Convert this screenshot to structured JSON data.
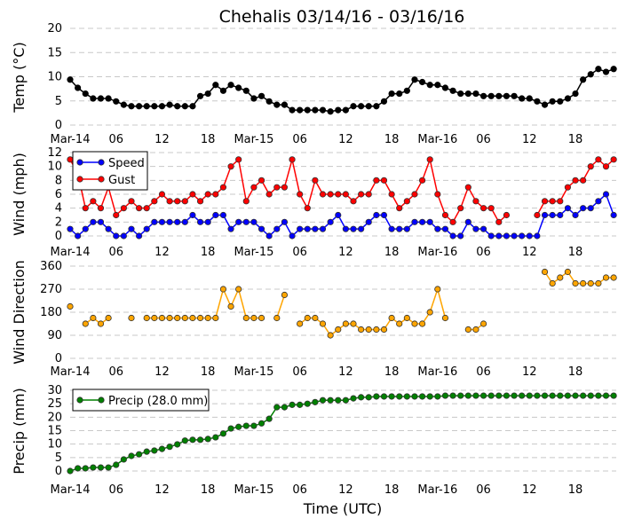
{
  "chart_data": {
    "type": "line",
    "title": "Chehalis 03/14/16 - 03/16/16",
    "xlabel": "Time (UTC)",
    "xlim": [
      "2016-03-14T00:00",
      "2016-03-16T23:20"
    ],
    "x_tick_labels": [
      "Mar-14",
      "06",
      "12",
      "18",
      "Mar-15",
      "06",
      "12",
      "18",
      "Mar-16",
      "06",
      "12",
      "18"
    ],
    "x_tick_times": [
      "2016-03-14T00:00",
      "2016-03-14T06:00",
      "2016-03-14T12:00",
      "2016-03-14T18:00",
      "2016-03-15T00:00",
      "2016-03-15T06:00",
      "2016-03-15T12:00",
      "2016-03-15T18:00",
      "2016-03-16T00:00",
      "2016-03-16T06:00",
      "2016-03-16T12:00",
      "2016-03-16T18:00"
    ],
    "grid": "horizontal dashed",
    "times": [
      "2016-03-14T00:00",
      "2016-03-14T01:00",
      "2016-03-14T02:00",
      "2016-03-14T03:00",
      "2016-03-14T04:00",
      "2016-03-14T05:00",
      "2016-03-14T06:00",
      "2016-03-14T07:00",
      "2016-03-14T08:00",
      "2016-03-14T09:00",
      "2016-03-14T10:00",
      "2016-03-14T11:00",
      "2016-03-14T12:00",
      "2016-03-14T13:00",
      "2016-03-14T14:00",
      "2016-03-14T15:00",
      "2016-03-14T16:00",
      "2016-03-14T17:00",
      "2016-03-14T18:00",
      "2016-03-14T19:00",
      "2016-03-14T20:00",
      "2016-03-14T21:00",
      "2016-03-14T22:00",
      "2016-03-14T23:00",
      "2016-03-15T00:00",
      "2016-03-15T01:00",
      "2016-03-15T02:00",
      "2016-03-15T03:00",
      "2016-03-15T04:00",
      "2016-03-15T05:00",
      "2016-03-15T06:00",
      "2016-03-15T07:00",
      "2016-03-15T08:00",
      "2016-03-15T09:00",
      "2016-03-15T10:00",
      "2016-03-15T11:00",
      "2016-03-15T12:00",
      "2016-03-15T13:00",
      "2016-03-15T14:00",
      "2016-03-15T15:00",
      "2016-03-15T16:00",
      "2016-03-15T17:00",
      "2016-03-15T18:00",
      "2016-03-15T19:00",
      "2016-03-15T20:00",
      "2016-03-15T21:00",
      "2016-03-15T22:00",
      "2016-03-15T23:00",
      "2016-03-16T00:00",
      "2016-03-16T01:00",
      "2016-03-16T02:00",
      "2016-03-16T03:00",
      "2016-03-16T04:00",
      "2016-03-16T05:00",
      "2016-03-16T06:00",
      "2016-03-16T07:00",
      "2016-03-16T08:00",
      "2016-03-16T09:00",
      "2016-03-16T10:00",
      "2016-03-16T11:00",
      "2016-03-16T12:00",
      "2016-03-16T13:00",
      "2016-03-16T14:00",
      "2016-03-16T15:00",
      "2016-03-16T16:00",
      "2016-03-16T17:00",
      "2016-03-16T18:00",
      "2016-03-16T19:00",
      "2016-03-16T20:00",
      "2016-03-16T21:00",
      "2016-03-16T22:00",
      "2016-03-16T23:00"
    ],
    "panels": [
      {
        "id": "temp",
        "ylabel": "Temp (°C)",
        "ylim": [
          0,
          20
        ],
        "yticks": [
          0,
          5,
          10,
          15,
          20
        ],
        "legend": null,
        "series": [
          {
            "key": "temp",
            "color": "#000000",
            "marker_fill": "#000000",
            "values": [
              9.4,
              7.7,
              6.5,
              5.5,
              5.5,
              5.5,
              4.9,
              4.2,
              3.9,
              3.9,
              3.9,
              3.9,
              3.9,
              4.2,
              3.9,
              3.9,
              3.9,
              6.0,
              6.5,
              8.3,
              7.1,
              8.3,
              7.7,
              7.1,
              5.5,
              6.0,
              4.9,
              4.2,
              4.2,
              3.1,
              3.1,
              3.1,
              3.1,
              3.1,
              2.8,
              3.1,
              3.1,
              3.9,
              3.9,
              3.9,
              3.9,
              4.9,
              6.5,
              6.5,
              7.1,
              9.4,
              8.9,
              8.3,
              8.3,
              7.7,
              7.1,
              6.5,
              6.5,
              6.5,
              6.0,
              6.0,
              6.0,
              6.0,
              6.0,
              5.5,
              5.5,
              4.9,
              4.2,
              4.9,
              4.9,
              5.5,
              6.5,
              9.4,
              10.5,
              11.6,
              11.0,
              11.6
            ]
          }
        ]
      },
      {
        "id": "wind",
        "ylabel": "Wind (mph)",
        "ylim": [
          0,
          12
        ],
        "yticks": [
          0,
          2,
          4,
          6,
          8,
          10,
          12
        ],
        "legend": "top-left",
        "series": [
          {
            "key": "speed",
            "name": "Speed",
            "color": "#0000ff",
            "marker_fill": "#0000ff",
            "values": [
              1,
              0,
              1,
              2,
              2,
              1,
              0,
              0,
              1,
              0,
              1,
              2,
              2,
              2,
              2,
              2,
              3,
              2,
              2,
              3,
              3,
              1,
              2,
              2,
              2,
              1,
              0,
              1,
              2,
              0,
              1,
              1,
              1,
              1,
              2,
              3,
              1,
              1,
              1,
              2,
              3,
              3,
              1,
              1,
              1,
              2,
              2,
              2,
              1,
              1,
              0,
              0,
              2,
              1,
              1,
              0,
              0,
              0,
              0,
              0,
              0,
              0,
              3,
              3,
              3,
              4,
              3,
              4,
              4,
              5,
              6,
              3
            ]
          },
          {
            "key": "gust",
            "name": "Gust",
            "color": "#ff0000",
            "marker_fill": "#ff0000",
            "values": [
              11,
              9,
              4,
              5,
              4,
              7,
              3,
              4,
              5,
              4,
              4,
              5,
              6,
              5,
              5,
              5,
              6,
              5,
              6,
              6,
              7,
              10,
              11,
              5,
              7,
              8,
              6,
              7,
              7,
              11,
              6,
              4,
              8,
              6,
              6,
              6,
              6,
              5,
              6,
              6,
              8,
              8,
              6,
              4,
              5,
              6,
              8,
              11,
              6,
              3,
              2,
              4,
              7,
              5,
              4,
              4,
              2,
              3,
              null,
              null,
              null,
              3,
              5,
              5,
              5,
              7,
              8,
              8,
              10,
              11,
              10,
              11
            ]
          }
        ]
      },
      {
        "id": "direction",
        "ylabel": "Wind Direction",
        "ylim": [
          0,
          360
        ],
        "yticks": [
          0,
          90,
          180,
          270,
          360
        ],
        "legend": null,
        "series": [
          {
            "key": "direction",
            "color": "#ffa500",
            "marker_fill": "#ffa500",
            "values": [
              202.5,
              null,
              135,
              157.5,
              135,
              157.5,
              null,
              null,
              157.5,
              null,
              157.5,
              157.5,
              157.5,
              157.5,
              157.5,
              157.5,
              157.5,
              157.5,
              157.5,
              157.5,
              270,
              202.5,
              270,
              157.5,
              157.5,
              157.5,
              null,
              157.5,
              247.5,
              null,
              135,
              157.5,
              157.5,
              135,
              90,
              112.5,
              135,
              135,
              112.5,
              112.5,
              112.5,
              112.5,
              157.5,
              135,
              157.5,
              135,
              135,
              180,
              270,
              157.5,
              null,
              null,
              112.5,
              112.5,
              135,
              null,
              null,
              null,
              null,
              null,
              null,
              null,
              337.5,
              292.5,
              315,
              337.5,
              292.5,
              292.5,
              292.5,
              292.5,
              315,
              315
            ]
          }
        ]
      },
      {
        "id": "precip",
        "ylabel": "Precip (mm)",
        "ylim": [
          0,
          30
        ],
        "yticks": [
          0,
          5,
          10,
          15,
          20,
          25,
          30
        ],
        "legend": "top-left",
        "series": [
          {
            "key": "precip",
            "name": "Precip (28.0 mm)",
            "color": "#008000",
            "marker_fill": "#008000",
            "values": [
              0,
              1.0,
              1.0,
              1.3,
              1.3,
              1.3,
              2.3,
              4.3,
              5.6,
              6.2,
              7.2,
              7.6,
              8.2,
              9.0,
              9.9,
              11.3,
              11.6,
              11.6,
              11.9,
              12.5,
              13.9,
              15.8,
              16.4,
              16.8,
              16.8,
              17.7,
              19.4,
              23.7,
              23.7,
              24.6,
              24.6,
              25.0,
              25.6,
              26.3,
              26.3,
              26.3,
              26.3,
              27.0,
              27.4,
              27.4,
              27.7,
              27.7,
              27.7,
              27.7,
              27.7,
              27.7,
              27.7,
              27.7,
              27.7,
              28.0,
              28.0,
              28.0,
              28.0,
              28.0,
              28.0,
              28.0,
              28.0,
              28.0,
              28.0,
              28.0,
              28.0,
              28.0,
              28.0,
              28.0,
              28.0,
              28.0,
              28.0,
              28.0,
              28.0,
              28.0,
              28.0,
              28.0
            ]
          }
        ]
      }
    ]
  }
}
